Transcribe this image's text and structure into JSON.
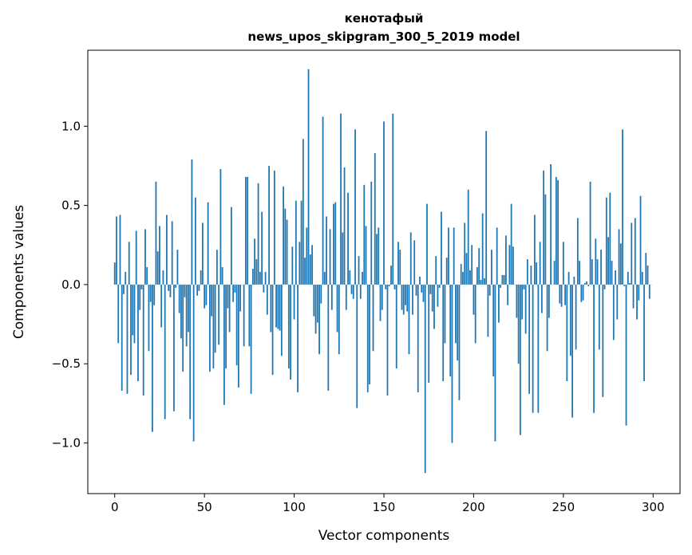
{
  "chart_data": {
    "type": "bar",
    "title_line1": "кенотафый",
    "title_line2": "news_upos_skipgram_300_5_2019 model",
    "xlabel": "Vector components",
    "ylabel": "Components values",
    "xlim": [
      -15,
      315
    ],
    "ylim": [
      -1.32,
      1.48
    ],
    "xticks": [
      0,
      50,
      100,
      150,
      200,
      250,
      300
    ],
    "xtick_labels": [
      "0",
      "50",
      "100",
      "150",
      "200",
      "250",
      "300"
    ],
    "yticks": [
      -1.0,
      -0.5,
      0.0,
      0.5,
      1.0
    ],
    "ytick_labels": [
      "−1.0",
      "−0.5",
      "0.0",
      "0.5",
      "1.0"
    ],
    "bar_color": "#1f77b4",
    "grid": false,
    "values": [
      0.14,
      0.43,
      -0.37,
      0.44,
      -0.67,
      -0.06,
      0.08,
      -0.69,
      0.27,
      -0.57,
      -0.32,
      -0.37,
      0.34,
      -0.61,
      -0.16,
      -0.03,
      -0.7,
      0.35,
      0.11,
      -0.42,
      -0.11,
      -0.93,
      -0.13,
      0.65,
      0.21,
      0.37,
      -0.27,
      0.09,
      -0.85,
      0.44,
      -0.04,
      -0.08,
      0.4,
      -0.8,
      -0.02,
      0.22,
      -0.18,
      -0.34,
      -0.55,
      -0.08,
      -0.39,
      -0.3,
      -0.85,
      0.79,
      -0.99,
      0.55,
      -0.07,
      -0.04,
      0.09,
      0.39,
      -0.15,
      -0.13,
      0.52,
      -0.55,
      -0.2,
      -0.53,
      -0.43,
      0.22,
      -0.38,
      0.73,
      0.11,
      -0.76,
      -0.53,
      -0.15,
      -0.3,
      0.49,
      -0.11,
      -0.05,
      -0.51,
      -0.65,
      -0.17,
      0.0,
      -0.39,
      0.68,
      0.68,
      -0.39,
      -0.69,
      0.1,
      0.29,
      0.16,
      0.64,
      0.08,
      0.46,
      -0.05,
      0.08,
      -0.19,
      0.75,
      -0.3,
      -0.57,
      0.72,
      -0.27,
      -0.28,
      -0.29,
      -0.45,
      0.62,
      0.48,
      0.41,
      -0.53,
      -0.6,
      0.24,
      -0.22,
      0.53,
      -0.68,
      0.27,
      0.53,
      0.92,
      0.17,
      0.36,
      1.36,
      0.19,
      0.25,
      -0.2,
      -0.31,
      -0.24,
      -0.44,
      -0.12,
      1.06,
      0.08,
      0.43,
      -0.67,
      0.35,
      -0.16,
      0.51,
      0.52,
      -0.3,
      -0.44,
      1.08,
      0.33,
      0.74,
      -0.16,
      0.58,
      0.09,
      -0.06,
      -0.09,
      0.98,
      -0.78,
      0.18,
      -0.09,
      0.08,
      0.63,
      0.37,
      -0.68,
      -0.63,
      0.65,
      -0.42,
      0.83,
      0.32,
      0.36,
      -0.23,
      -0.16,
      1.03,
      -0.03,
      -0.7,
      -0.01,
      0.12,
      1.08,
      -0.03,
      -0.53,
      0.27,
      0.22,
      -0.16,
      -0.19,
      -0.13,
      -0.17,
      -0.44,
      0.33,
      -0.19,
      0.28,
      -0.07,
      -0.68,
      0.05,
      -0.05,
      -0.11,
      -1.19,
      0.51,
      -0.62,
      -0.06,
      -0.17,
      -0.28,
      0.18,
      -0.14,
      -0.02,
      0.46,
      -0.61,
      -0.37,
      0.17,
      0.36,
      -0.58,
      -1.0,
      0.36,
      -0.37,
      -0.48,
      -0.73,
      0.13,
      0.08,
      0.39,
      0.2,
      0.6,
      0.09,
      0.25,
      -0.19,
      -0.37,
      0.11,
      0.23,
      0.03,
      0.45,
      0.04,
      0.97,
      -0.33,
      -0.07,
      0.22,
      -0.58,
      -0.99,
      0.36,
      -0.24,
      -0.02,
      0.06,
      0.06,
      0.31,
      -0.13,
      0.25,
      0.51,
      0.24,
      0.0,
      -0.21,
      -0.5,
      -0.95,
      -0.22,
      -0.03,
      -0.31,
      0.16,
      -0.69,
      0.12,
      -0.81,
      0.44,
      0.14,
      -0.81,
      0.27,
      -0.18,
      0.72,
      0.57,
      -0.42,
      -0.21,
      0.76,
      0.0,
      0.15,
      0.68,
      0.66,
      -0.12,
      -0.14,
      0.27,
      -0.13,
      -0.61,
      0.08,
      -0.45,
      -0.84,
      0.05,
      -0.41,
      0.42,
      0.15,
      -0.11,
      -0.1,
      0.01,
      0.02,
      -0.01,
      0.65,
      0.16,
      -0.81,
      0.29,
      0.16,
      -0.41,
      0.22,
      -0.71,
      -0.03,
      0.55,
      0.3,
      0.58,
      0.15,
      -0.35,
      0.09,
      -0.22,
      0.35,
      0.26,
      0.98,
      -0.01,
      -0.89,
      0.08,
      0.01,
      0.39,
      -0.15,
      0.42,
      -0.22,
      -0.1,
      0.56,
      0.08,
      -0.61,
      0.2,
      0.12,
      -0.09,
      0.0
    ]
  }
}
